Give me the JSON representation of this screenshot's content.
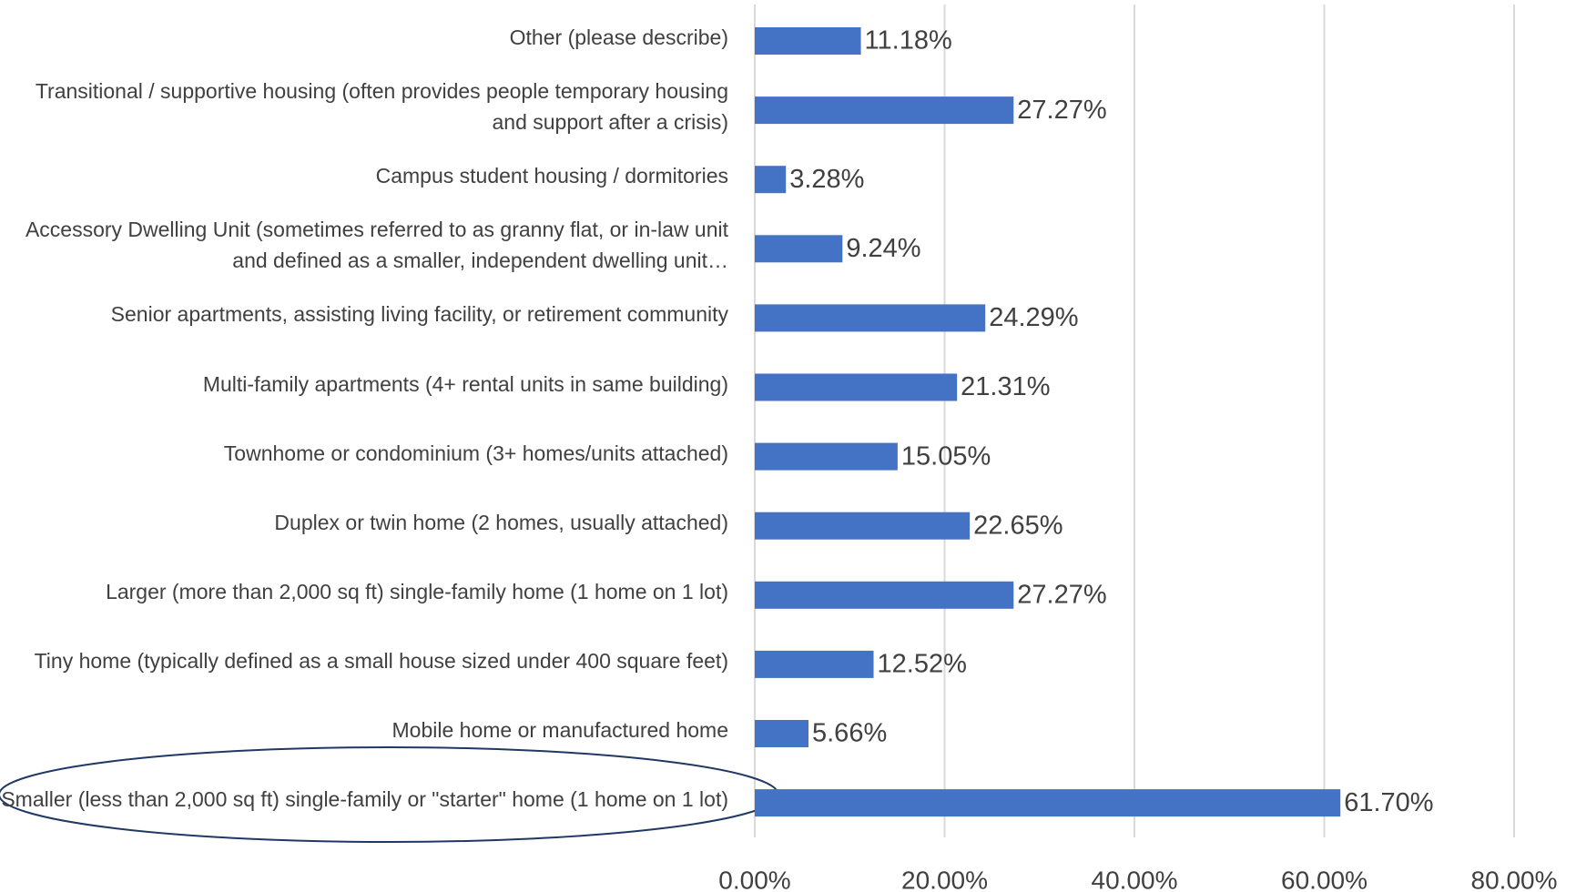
{
  "chart_data": {
    "type": "barh",
    "categories": [
      "Other (please describe)",
      "Transitional / supportive housing (often provides people temporary housing and support after a crisis)",
      "Campus student housing / dormitories",
      "Accessory Dwelling Unit (sometimes referred to as granny flat, or in-law unit and defined as a smaller, independent dwelling unit…",
      "Senior apartments, assisting living facility, or retirement community",
      "Multi-family apartments (4+ rental units in same building)",
      "Townhome or condominium (3+ homes/units attached)",
      "Duplex or twin home (2 homes, usually attached)",
      "Larger (more than 2,000 sq ft) single-family home (1 home on 1 lot)",
      "Tiny home (typically defined as a small house sized under 400 square feet)",
      "Mobile home or manufactured home",
      "Smaller (less than 2,000 sq ft) single-family or \"starter\" home (1 home on 1 lot)"
    ],
    "values": [
      11.18,
      27.27,
      3.28,
      9.24,
      24.29,
      21.31,
      15.05,
      22.65,
      27.27,
      12.52,
      5.66,
      61.7
    ],
    "value_labels": [
      "11.18%",
      "27.27%",
      "3.28%",
      "9.24%",
      "24.29%",
      "21.31%",
      "15.05%",
      "22.65%",
      "27.27%",
      "12.52%",
      "5.66%",
      "61.70%"
    ],
    "color": "#4472c4",
    "xlim": [
      0,
      80
    ],
    "xticks": [
      {
        "value": 0,
        "label": "0.00%"
      },
      {
        "value": 20,
        "label": "20.00%"
      },
      {
        "value": 40,
        "label": "40.00%"
      },
      {
        "value": 60,
        "label": "60.00%"
      },
      {
        "value": 80,
        "label": "80.00%"
      }
    ],
    "grid": true
  }
}
